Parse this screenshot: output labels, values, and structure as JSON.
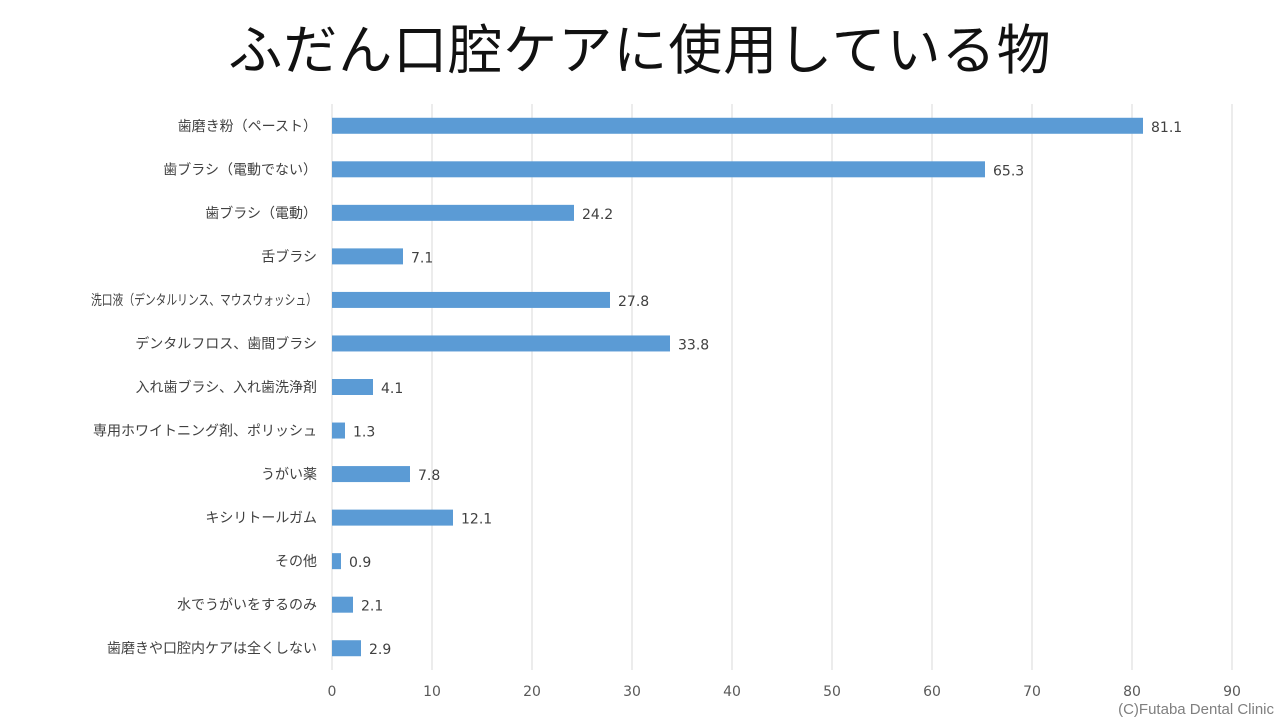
{
  "title": "ふだん口腔ケアに使用している物",
  "credit": "(C)Futaba Dental Clinic",
  "colors": {
    "bar": "#5b9bd5",
    "grid": "#d9d9d9"
  },
  "chart_data": {
    "type": "bar",
    "orientation": "horizontal",
    "title": "ふだん口腔ケアに使用している物",
    "xlabel": "",
    "ylabel": "",
    "xlim": [
      0,
      90
    ],
    "x_ticks": [
      0,
      10,
      20,
      30,
      40,
      50,
      60,
      70,
      80,
      90
    ],
    "grid": true,
    "legend": "none",
    "categories": [
      "歯磨き粉（ペースト）",
      "歯ブラシ（電動でない）",
      "歯ブラシ（電動）",
      "舌ブラシ",
      "洗口液（デンタルリンス、マウスウォッシュ）",
      "デンタルフロス、歯間ブラシ",
      "入れ歯ブラシ、入れ歯洗浄剤",
      "専用ホワイトニング剤、ポリッシュ",
      "うがい薬",
      "キシリトールガム",
      "その他",
      "水でうがいをするのみ",
      "歯磨きや口腔内ケアは全くしない"
    ],
    "values": [
      81.1,
      65.3,
      24.2,
      7.1,
      27.8,
      33.8,
      4.1,
      1.3,
      7.8,
      12.1,
      0.9,
      2.1,
      2.9
    ],
    "value_labels": [
      "81.1",
      "65.3",
      "24.2",
      "7.1",
      "27.8",
      "33.8",
      "4.1",
      "1.3",
      "7.8",
      "12.1",
      "0.9",
      "2.1",
      "2.9"
    ]
  }
}
